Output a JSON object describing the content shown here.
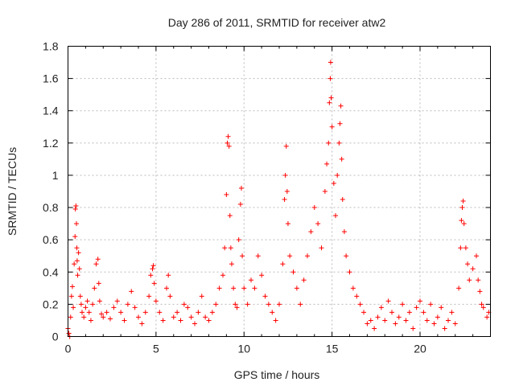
{
  "chart_data": {
    "type": "scatter",
    "title": "Day 286 of 2011, SRMTID for receiver atw2",
    "xlabel": "GPS time / hours",
    "ylabel": "SRMTID / TECUs",
    "xlim": [
      0,
      24
    ],
    "ylim": [
      0,
      1.8
    ],
    "xticks": [
      0,
      5,
      10,
      15,
      20
    ],
    "xtick_labels": [
      "0",
      "5",
      "10",
      "15",
      "20"
    ],
    "yticks": [
      0,
      0.2,
      0.4,
      0.6,
      0.8,
      1,
      1.2,
      1.4,
      1.6,
      1.8
    ],
    "ytick_labels": [
      "0",
      "0.2",
      "0.4",
      "0.6",
      "0.8",
      "1",
      "1.2",
      "1.4",
      "1.6",
      "1.8"
    ],
    "grid": true,
    "marker": "+",
    "color": "#ff0000",
    "series": [
      {
        "name": "SRMTID",
        "points": [
          [
            0.0,
            0.05
          ],
          [
            0.05,
            0.02
          ],
          [
            0.1,
            0.0
          ],
          [
            0.15,
            0.12
          ],
          [
            0.2,
            0.25
          ],
          [
            0.25,
            0.31
          ],
          [
            0.3,
            0.18
          ],
          [
            0.35,
            0.45
          ],
          [
            0.4,
            0.62
          ],
          [
            0.42,
            0.79
          ],
          [
            0.45,
            0.81
          ],
          [
            0.48,
            0.7
          ],
          [
            0.5,
            0.55
          ],
          [
            0.52,
            0.47
          ],
          [
            0.55,
            0.38
          ],
          [
            0.6,
            0.52
          ],
          [
            0.65,
            0.42
          ],
          [
            0.7,
            0.25
          ],
          [
            0.75,
            0.2
          ],
          [
            0.8,
            0.15
          ],
          [
            0.9,
            0.12
          ],
          [
            1.0,
            0.18
          ],
          [
            1.1,
            0.22
          ],
          [
            1.2,
            0.15
          ],
          [
            1.3,
            0.1
          ],
          [
            1.4,
            0.2
          ],
          [
            1.5,
            0.3
          ],
          [
            1.6,
            0.45
          ],
          [
            1.7,
            0.48
          ],
          [
            1.75,
            0.33
          ],
          [
            1.8,
            0.22
          ],
          [
            1.9,
            0.14
          ],
          [
            2.0,
            0.12
          ],
          [
            2.2,
            0.15
          ],
          [
            2.4,
            0.11
          ],
          [
            2.6,
            0.18
          ],
          [
            2.8,
            0.22
          ],
          [
            3.0,
            0.15
          ],
          [
            3.2,
            0.1
          ],
          [
            3.4,
            0.2
          ],
          [
            3.6,
            0.28
          ],
          [
            3.8,
            0.18
          ],
          [
            4.0,
            0.12
          ],
          [
            4.2,
            0.08
          ],
          [
            4.4,
            0.15
          ],
          [
            4.6,
            0.25
          ],
          [
            4.7,
            0.38
          ],
          [
            4.8,
            0.42
          ],
          [
            4.85,
            0.44
          ],
          [
            4.9,
            0.33
          ],
          [
            5.0,
            0.22
          ],
          [
            5.2,
            0.15
          ],
          [
            5.4,
            0.1
          ],
          [
            5.6,
            0.3
          ],
          [
            5.7,
            0.38
          ],
          [
            5.8,
            0.25
          ],
          [
            6.0,
            0.12
          ],
          [
            6.2,
            0.15
          ],
          [
            6.4,
            0.1
          ],
          [
            6.6,
            0.2
          ],
          [
            6.8,
            0.18
          ],
          [
            7.0,
            0.12
          ],
          [
            7.2,
            0.08
          ],
          [
            7.4,
            0.15
          ],
          [
            7.6,
            0.25
          ],
          [
            7.8,
            0.12
          ],
          [
            8.0,
            0.1
          ],
          [
            8.2,
            0.15
          ],
          [
            8.4,
            0.2
          ],
          [
            8.6,
            0.3
          ],
          [
            8.8,
            0.38
          ],
          [
            8.9,
            0.55
          ],
          [
            9.0,
            0.88
          ],
          [
            9.05,
            1.2
          ],
          [
            9.1,
            1.24
          ],
          [
            9.15,
            1.18
          ],
          [
            9.2,
            0.75
          ],
          [
            9.25,
            0.55
          ],
          [
            9.3,
            0.45
          ],
          [
            9.4,
            0.3
          ],
          [
            9.5,
            0.2
          ],
          [
            9.6,
            0.18
          ],
          [
            9.7,
            0.6
          ],
          [
            9.8,
            0.82
          ],
          [
            9.85,
            0.92
          ],
          [
            9.9,
            0.5
          ],
          [
            10.0,
            0.3
          ],
          [
            10.2,
            0.2
          ],
          [
            10.4,
            0.35
          ],
          [
            10.6,
            0.3
          ],
          [
            10.8,
            0.5
          ],
          [
            11.0,
            0.38
          ],
          [
            11.2,
            0.25
          ],
          [
            11.4,
            0.2
          ],
          [
            11.6,
            0.15
          ],
          [
            11.8,
            0.1
          ],
          [
            12.0,
            0.2
          ],
          [
            12.2,
            0.45
          ],
          [
            12.3,
            0.85
          ],
          [
            12.35,
            1.0
          ],
          [
            12.4,
            1.18
          ],
          [
            12.45,
            0.9
          ],
          [
            12.5,
            0.7
          ],
          [
            12.6,
            0.5
          ],
          [
            12.8,
            0.4
          ],
          [
            13.0,
            0.3
          ],
          [
            13.2,
            0.2
          ],
          [
            13.4,
            0.35
          ],
          [
            13.6,
            0.5
          ],
          [
            13.8,
            0.65
          ],
          [
            14.0,
            0.8
          ],
          [
            14.2,
            0.7
          ],
          [
            14.4,
            0.55
          ],
          [
            14.6,
            0.9
          ],
          [
            14.7,
            1.07
          ],
          [
            14.8,
            1.2
          ],
          [
            14.85,
            1.45
          ],
          [
            14.9,
            1.6
          ],
          [
            14.92,
            1.7
          ],
          [
            14.95,
            1.48
          ],
          [
            15.0,
            1.3
          ],
          [
            15.1,
            0.95
          ],
          [
            15.2,
            0.75
          ],
          [
            15.3,
            1.0
          ],
          [
            15.4,
            1.2
          ],
          [
            15.45,
            1.32
          ],
          [
            15.5,
            1.43
          ],
          [
            15.55,
            1.1
          ],
          [
            15.6,
            0.85
          ],
          [
            15.7,
            0.65
          ],
          [
            15.8,
            0.5
          ],
          [
            16.0,
            0.4
          ],
          [
            16.2,
            0.3
          ],
          [
            16.4,
            0.25
          ],
          [
            16.6,
            0.2
          ],
          [
            16.8,
            0.15
          ],
          [
            17.0,
            0.08
          ],
          [
            17.2,
            0.1
          ],
          [
            17.4,
            0.05
          ],
          [
            17.6,
            0.12
          ],
          [
            17.8,
            0.18
          ],
          [
            18.0,
            0.1
          ],
          [
            18.2,
            0.22
          ],
          [
            18.4,
            0.15
          ],
          [
            18.6,
            0.08
          ],
          [
            18.8,
            0.12
          ],
          [
            19.0,
            0.2
          ],
          [
            19.2,
            0.1
          ],
          [
            19.4,
            0.15
          ],
          [
            19.6,
            0.05
          ],
          [
            19.8,
            0.18
          ],
          [
            20.0,
            0.22
          ],
          [
            20.2,
            0.15
          ],
          [
            20.4,
            0.1
          ],
          [
            20.6,
            0.2
          ],
          [
            20.8,
            0.08
          ],
          [
            21.0,
            0.12
          ],
          [
            21.2,
            0.18
          ],
          [
            21.4,
            0.05
          ],
          [
            21.6,
            0.1
          ],
          [
            21.8,
            0.15
          ],
          [
            22.0,
            0.08
          ],
          [
            22.2,
            0.3
          ],
          [
            22.3,
            0.55
          ],
          [
            22.35,
            0.72
          ],
          [
            22.4,
            0.8
          ],
          [
            22.45,
            0.84
          ],
          [
            22.5,
            0.7
          ],
          [
            22.6,
            0.55
          ],
          [
            22.7,
            0.45
          ],
          [
            22.8,
            0.35
          ],
          [
            23.0,
            0.42
          ],
          [
            23.2,
            0.5
          ],
          [
            23.3,
            0.35
          ],
          [
            23.4,
            0.28
          ],
          [
            23.5,
            0.2
          ],
          [
            23.6,
            0.18
          ],
          [
            23.8,
            0.12
          ],
          [
            23.9,
            0.15
          ]
        ]
      }
    ]
  }
}
